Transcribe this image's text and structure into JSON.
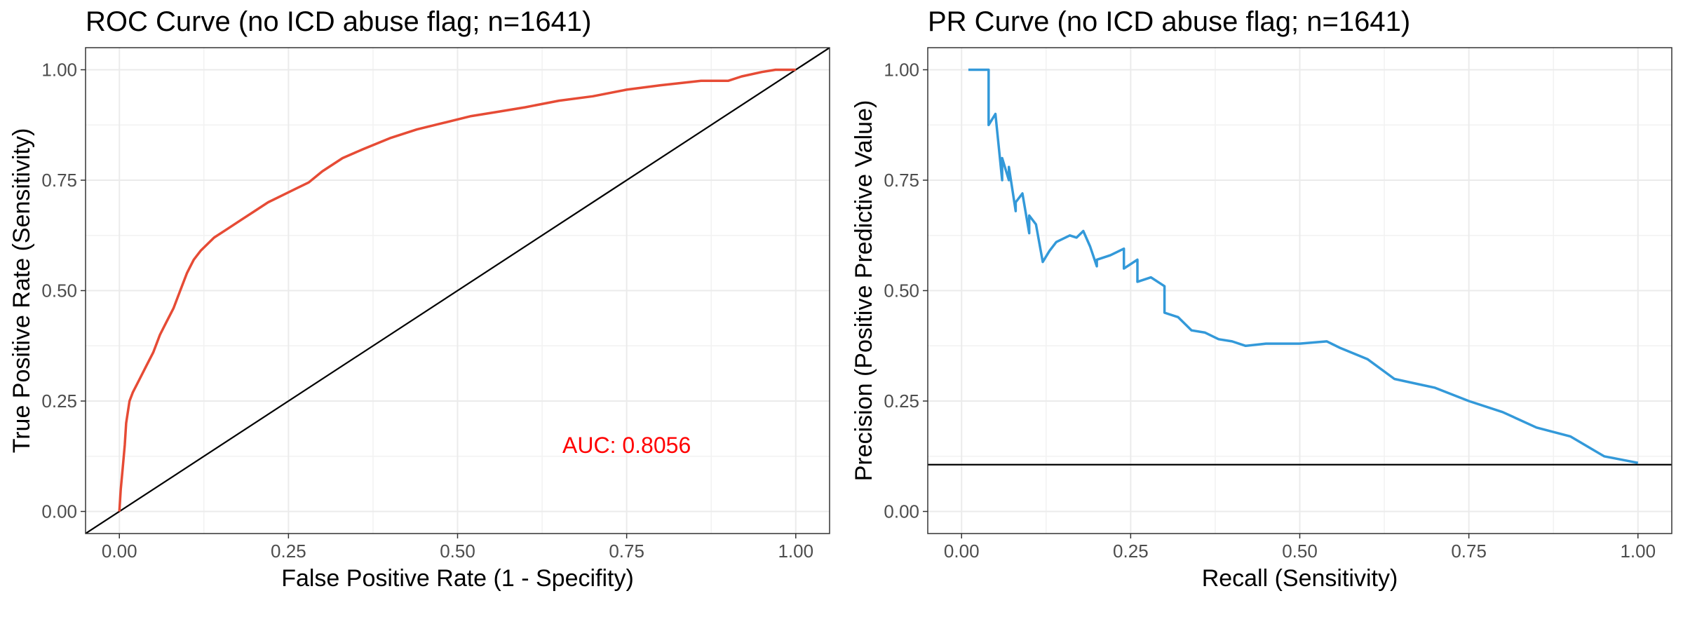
{
  "chart_data": [
    {
      "type": "line",
      "title": "ROC Curve (no ICD abuse flag; n=1641)",
      "xlabel": "False Positive Rate (1 - Specifity)",
      "ylabel": "True Positive Rate (Sensitivity)",
      "xlim": [
        -0.05,
        1.05
      ],
      "ylim": [
        -0.05,
        1.05
      ],
      "x_ticks": [
        "0.00",
        "0.25",
        "0.50",
        "0.75",
        "1.00"
      ],
      "y_ticks": [
        "0.00",
        "0.25",
        "0.50",
        "0.75",
        "1.00"
      ],
      "grid": true,
      "annotation": {
        "text": "AUC: 0.8056",
        "x": 0.75,
        "y": 0.15,
        "color": "#ff0000"
      },
      "reference_line": {
        "kind": "diagonal",
        "color": "#000000"
      },
      "series": [
        {
          "color": "#e64b35",
          "x": [
            0.0,
            0.002,
            0.005,
            0.008,
            0.01,
            0.015,
            0.02,
            0.03,
            0.04,
            0.05,
            0.06,
            0.07,
            0.08,
            0.09,
            0.1,
            0.11,
            0.12,
            0.14,
            0.16,
            0.18,
            0.2,
            0.22,
            0.24,
            0.26,
            0.28,
            0.3,
            0.33,
            0.36,
            0.4,
            0.44,
            0.48,
            0.52,
            0.56,
            0.6,
            0.65,
            0.7,
            0.75,
            0.8,
            0.86,
            0.9,
            0.92,
            0.95,
            0.97,
            1.0
          ],
          "y": [
            0.0,
            0.05,
            0.1,
            0.15,
            0.2,
            0.25,
            0.27,
            0.3,
            0.33,
            0.36,
            0.4,
            0.43,
            0.46,
            0.5,
            0.54,
            0.57,
            0.59,
            0.62,
            0.64,
            0.66,
            0.68,
            0.7,
            0.715,
            0.73,
            0.745,
            0.77,
            0.8,
            0.82,
            0.845,
            0.865,
            0.88,
            0.895,
            0.905,
            0.915,
            0.93,
            0.94,
            0.955,
            0.965,
            0.975,
            0.975,
            0.985,
            0.995,
            1.0,
            1.0
          ]
        }
      ]
    },
    {
      "type": "line",
      "title": "PR Curve (no ICD abuse flag; n=1641)",
      "xlabel": "Recall (Sensitivity)",
      "ylabel": "Precision (Positive Predictive Value)",
      "xlim": [
        -0.05,
        1.05
      ],
      "ylim": [
        -0.05,
        1.05
      ],
      "x_ticks": [
        "0.00",
        "0.25",
        "0.50",
        "0.75",
        "1.00"
      ],
      "y_ticks": [
        "0.00",
        "0.25",
        "0.50",
        "0.75",
        "1.00"
      ],
      "grid": true,
      "reference_line": {
        "kind": "horizontal",
        "y": 0.106,
        "color": "#000000"
      },
      "series": [
        {
          "color": "#3399d9",
          "x": [
            0.01,
            0.04,
            0.04,
            0.05,
            0.06,
            0.06,
            0.07,
            0.07,
            0.08,
            0.08,
            0.09,
            0.1,
            0.1,
            0.11,
            0.12,
            0.13,
            0.14,
            0.16,
            0.17,
            0.18,
            0.19,
            0.2,
            0.2,
            0.22,
            0.24,
            0.24,
            0.26,
            0.26,
            0.28,
            0.3,
            0.3,
            0.32,
            0.34,
            0.36,
            0.38,
            0.4,
            0.42,
            0.45,
            0.5,
            0.54,
            0.56,
            0.6,
            0.64,
            0.7,
            0.75,
            0.8,
            0.85,
            0.9,
            0.95,
            1.0
          ],
          "y": [
            1.0,
            1.0,
            0.875,
            0.9,
            0.75,
            0.8,
            0.75,
            0.78,
            0.68,
            0.7,
            0.72,
            0.63,
            0.67,
            0.65,
            0.565,
            0.59,
            0.61,
            0.625,
            0.62,
            0.635,
            0.6,
            0.555,
            0.57,
            0.58,
            0.595,
            0.55,
            0.57,
            0.52,
            0.53,
            0.51,
            0.45,
            0.44,
            0.41,
            0.405,
            0.39,
            0.385,
            0.375,
            0.38,
            0.38,
            0.385,
            0.37,
            0.345,
            0.3,
            0.28,
            0.25,
            0.225,
            0.19,
            0.17,
            0.125,
            0.11
          ]
        }
      ]
    }
  ]
}
